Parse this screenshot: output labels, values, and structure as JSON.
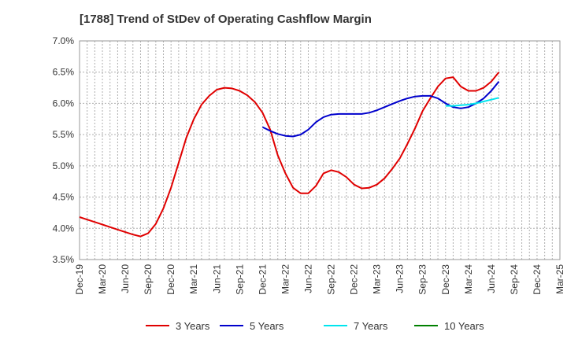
{
  "chart_data": {
    "type": "line",
    "title": "[1788]  Trend of StDev of Operating Cashflow Margin",
    "xlabel": "",
    "ylabel": "",
    "ylim": [
      3.5,
      7.0
    ],
    "xlim": [
      "Dec-19",
      "Mar-25"
    ],
    "grid": true,
    "legend_position": "bottom",
    "y_ticks": [
      "3.5%",
      "4.0%",
      "4.5%",
      "5.0%",
      "5.5%",
      "6.0%",
      "6.5%",
      "7.0%"
    ],
    "x_ticks": [
      "Dec-19",
      "Mar-20",
      "Jun-20",
      "Sep-20",
      "Dec-20",
      "Mar-21",
      "Jun-21",
      "Sep-21",
      "Dec-21",
      "Mar-22",
      "Jun-22",
      "Sep-22",
      "Dec-22",
      "Mar-23",
      "Jun-23",
      "Sep-23",
      "Dec-23",
      "Mar-24",
      "Jun-24",
      "Sep-24",
      "Dec-24",
      "Mar-25"
    ],
    "series": [
      {
        "name": "3 Years",
        "color": "#e00000",
        "points": [
          [
            "Dec-19",
            4.18
          ],
          [
            "Jan-20",
            4.14
          ],
          [
            "Feb-20",
            4.1
          ],
          [
            "Mar-20",
            4.06
          ],
          [
            "Apr-20",
            4.02
          ],
          [
            "May-20",
            3.98
          ],
          [
            "Jun-20",
            3.94
          ],
          [
            "Jul-20",
            3.9
          ],
          [
            "Aug-20",
            3.87
          ],
          [
            "Sep-20",
            3.92
          ],
          [
            "Oct-20",
            4.07
          ],
          [
            "Nov-20",
            4.32
          ],
          [
            "Dec-20",
            4.65
          ],
          [
            "Jan-21",
            5.05
          ],
          [
            "Feb-21",
            5.45
          ],
          [
            "Mar-21",
            5.75
          ],
          [
            "Apr-21",
            5.98
          ],
          [
            "May-21",
            6.12
          ],
          [
            "Jun-21",
            6.22
          ],
          [
            "Jul-21",
            6.25
          ],
          [
            "Aug-21",
            6.24
          ],
          [
            "Sep-21",
            6.2
          ],
          [
            "Oct-21",
            6.13
          ],
          [
            "Nov-21",
            6.02
          ],
          [
            "Dec-21",
            5.85
          ],
          [
            "Jan-22",
            5.58
          ],
          [
            "Feb-22",
            5.17
          ],
          [
            "Mar-22",
            4.88
          ],
          [
            "Apr-22",
            4.65
          ],
          [
            "May-22",
            4.56
          ],
          [
            "Jun-22",
            4.56
          ],
          [
            "Jul-22",
            4.68
          ],
          [
            "Aug-22",
            4.88
          ],
          [
            "Sep-22",
            4.93
          ],
          [
            "Oct-22",
            4.9
          ],
          [
            "Nov-22",
            4.82
          ],
          [
            "Dec-22",
            4.7
          ],
          [
            "Jan-23",
            4.64
          ],
          [
            "Feb-23",
            4.65
          ],
          [
            "Mar-23",
            4.7
          ],
          [
            "Apr-23",
            4.8
          ],
          [
            "May-23",
            4.95
          ],
          [
            "Jun-23",
            5.12
          ],
          [
            "Jul-23",
            5.35
          ],
          [
            "Aug-23",
            5.6
          ],
          [
            "Sep-23",
            5.88
          ],
          [
            "Oct-23",
            6.08
          ],
          [
            "Nov-23",
            6.27
          ],
          [
            "Dec-23",
            6.4
          ],
          [
            "Jan-24",
            6.42
          ],
          [
            "Feb-24",
            6.27
          ],
          [
            "Mar-24",
            6.2
          ],
          [
            "Apr-24",
            6.2
          ],
          [
            "May-24",
            6.25
          ],
          [
            "Jun-24",
            6.35
          ],
          [
            "Jul-24",
            6.5
          ]
        ]
      },
      {
        "name": "5 Years",
        "color": "#0000cc",
        "points": [
          [
            "Dec-21",
            5.62
          ],
          [
            "Jan-22",
            5.56
          ],
          [
            "Feb-22",
            5.51
          ],
          [
            "Mar-22",
            5.48
          ],
          [
            "Apr-22",
            5.47
          ],
          [
            "May-22",
            5.5
          ],
          [
            "Jun-22",
            5.58
          ],
          [
            "Jul-22",
            5.7
          ],
          [
            "Aug-22",
            5.78
          ],
          [
            "Sep-22",
            5.82
          ],
          [
            "Oct-22",
            5.83
          ],
          [
            "Nov-22",
            5.83
          ],
          [
            "Dec-22",
            5.83
          ],
          [
            "Jan-23",
            5.83
          ],
          [
            "Feb-23",
            5.85
          ],
          [
            "Mar-23",
            5.89
          ],
          [
            "Apr-23",
            5.94
          ],
          [
            "May-23",
            5.99
          ],
          [
            "Jun-23",
            6.04
          ],
          [
            "Jul-23",
            6.08
          ],
          [
            "Aug-23",
            6.11
          ],
          [
            "Sep-23",
            6.12
          ],
          [
            "Oct-23",
            6.12
          ],
          [
            "Nov-23",
            6.08
          ],
          [
            "Dec-23",
            6.0
          ],
          [
            "Jan-24",
            5.94
          ],
          [
            "Feb-24",
            5.92
          ],
          [
            "Mar-24",
            5.94
          ],
          [
            "Apr-24",
            6.0
          ],
          [
            "May-24",
            6.08
          ],
          [
            "Jun-24",
            6.2
          ],
          [
            "Jul-24",
            6.35
          ]
        ]
      },
      {
        "name": "7 Years",
        "color": "#00e5ee",
        "points": [
          [
            "Dec-23",
            5.96
          ],
          [
            "Jan-24",
            5.96
          ],
          [
            "Feb-24",
            5.97
          ],
          [
            "Mar-24",
            5.98
          ],
          [
            "Apr-24",
            6.0
          ],
          [
            "May-24",
            6.03
          ],
          [
            "Jun-24",
            6.06
          ],
          [
            "Jul-24",
            6.09
          ]
        ]
      },
      {
        "name": "10 Years",
        "color": "#008000",
        "points": []
      }
    ]
  }
}
